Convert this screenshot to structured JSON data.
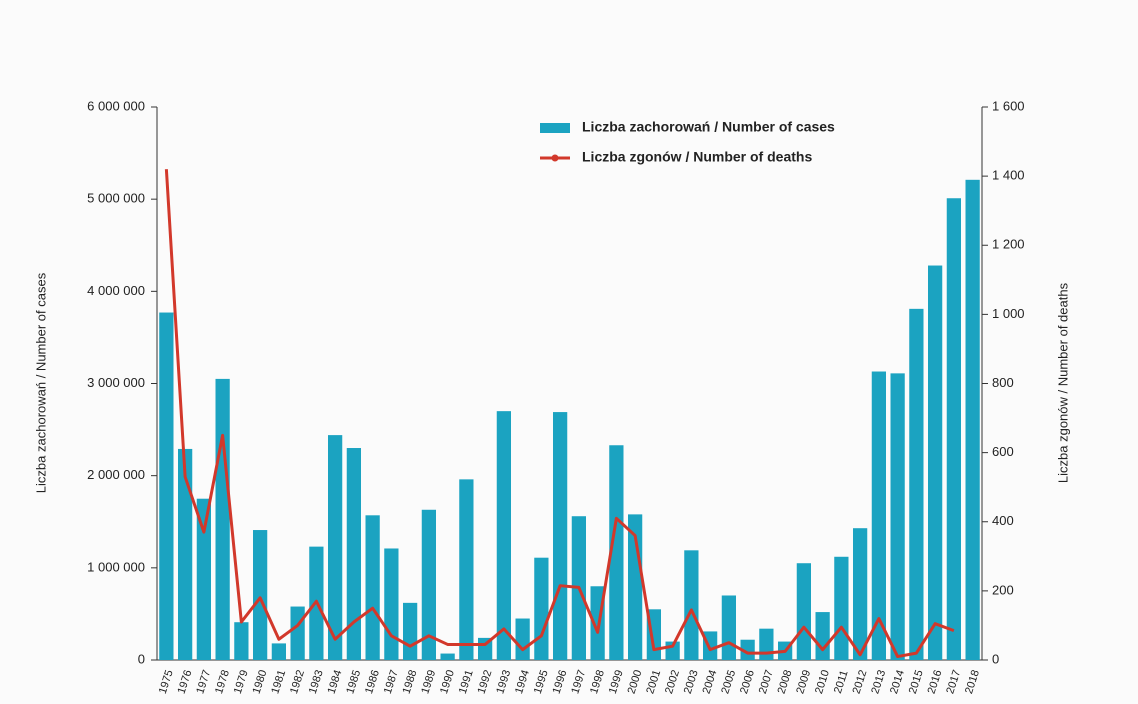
{
  "chart_data": {
    "type": "bar-line",
    "y_label": "Liczba zachorowań  /  Number of cases",
    "y2_label": "Liczba zgonów  /  Number of deaths",
    "categories": [
      "1975",
      "1976",
      "1977",
      "1978",
      "1979",
      "1980",
      "1981",
      "1982",
      "1983",
      "1984",
      "1985",
      "1986",
      "1987",
      "1988",
      "1989",
      "1990",
      "1991",
      "1992",
      "1993",
      "1994",
      "1995",
      "1996",
      "1997",
      "1998",
      "1999",
      "2000",
      "2001",
      "2002",
      "2003",
      "2004",
      "2005",
      "2006",
      "2007",
      "2008",
      "2009",
      "2010",
      "2011",
      "2012",
      "2013",
      "2014",
      "2015",
      "2016",
      "2017",
      "2018"
    ],
    "series": [
      {
        "name": "Liczba zachorowań / Number of cases",
        "type": "bar",
        "color": "#1ba3c1",
        "values": [
          3770000,
          2290000,
          1750000,
          3050000,
          410000,
          1410000,
          180000,
          580000,
          1230000,
          2440000,
          2300000,
          1570000,
          1210000,
          620000,
          1630000,
          70000,
          1960000,
          240000,
          2700000,
          450000,
          1110000,
          2690000,
          1560000,
          800000,
          2330000,
          1580000,
          550000,
          200000,
          1190000,
          310000,
          700000,
          220000,
          340000,
          200000,
          1050000,
          520000,
          1120000,
          1430000,
          3130000,
          3110000,
          3810000,
          4280000,
          5010000,
          5210000
        ]
      },
      {
        "name": "Liczba zgonów / Number of deaths",
        "type": "line",
        "axis": "y2",
        "color": "#d2382b",
        "values": [
          1420,
          530,
          370,
          650,
          110,
          180,
          60,
          100,
          170,
          60,
          110,
          150,
          70,
          40,
          70,
          45,
          45,
          45,
          90,
          30,
          70,
          215,
          210,
          80,
          410,
          360,
          30,
          40,
          145,
          30,
          50,
          20,
          20,
          25,
          95,
          30,
          95,
          15,
          120,
          10,
          20,
          105,
          85,
          null
        ]
      }
    ],
    "ylim": [
      0,
      6000000
    ],
    "yticks": [
      0,
      {
        "value": 1000000,
        "label": "1 000 000"
      },
      {
        "value": 2000000,
        "label": "2 000 000"
      },
      {
        "value": 3000000,
        "label": "3 000 000"
      },
      {
        "value": 4000000,
        "label": "4 000 000"
      },
      {
        "value": 5000000,
        "label": "5 000 000"
      },
      {
        "value": 6000000,
        "label": "6 000 000"
      }
    ],
    "y2lim": [
      0,
      1600
    ],
    "y2ticks": [
      0,
      200,
      400,
      600,
      800,
      {
        "value": 1000,
        "label": "1 000"
      },
      {
        "value": 1200,
        "label": "1 200"
      },
      {
        "value": 1400,
        "label": "1 400"
      },
      {
        "value": 1600,
        "label": "1 600"
      }
    ],
    "legend": "top-center"
  }
}
